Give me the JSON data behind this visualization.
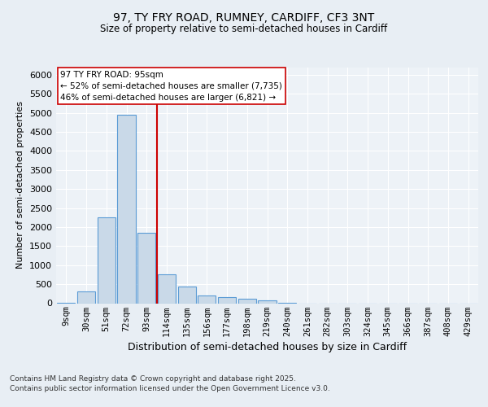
{
  "title1": "97, TY FRY ROAD, RUMNEY, CARDIFF, CF3 3NT",
  "title2": "Size of property relative to semi-detached houses in Cardiff",
  "xlabel": "Distribution of semi-detached houses by size in Cardiff",
  "ylabel": "Number of semi-detached properties",
  "categories": [
    "9sqm",
    "30sqm",
    "51sqm",
    "72sqm",
    "93sqm",
    "114sqm",
    "135sqm",
    "156sqm",
    "177sqm",
    "198sqm",
    "219sqm",
    "240sqm",
    "261sqm",
    "282sqm",
    "303sqm",
    "324sqm",
    "345sqm",
    "366sqm",
    "387sqm",
    "408sqm",
    "429sqm"
  ],
  "values": [
    15,
    310,
    2250,
    4950,
    1850,
    750,
    430,
    200,
    160,
    110,
    65,
    10,
    0,
    0,
    0,
    0,
    0,
    0,
    0,
    0,
    0
  ],
  "bar_color": "#c9d9e8",
  "bar_edge_color": "#5b9bd5",
  "vline_x": 4.5,
  "vline_color": "#cc0000",
  "annotation_line1": "97 TY FRY ROAD: 95sqm",
  "annotation_line2": "← 52% of semi-detached houses are smaller (7,735)",
  "annotation_line3": "46% of semi-detached houses are larger (6,821) →",
  "annotation_box_color": "#ffffff",
  "annotation_box_edge": "#cc0000",
  "ylim": [
    0,
    6200
  ],
  "yticks": [
    0,
    500,
    1000,
    1500,
    2000,
    2500,
    3000,
    3500,
    4000,
    4500,
    5000,
    5500,
    6000
  ],
  "footer1": "Contains HM Land Registry data © Crown copyright and database right 2025.",
  "footer2": "Contains public sector information licensed under the Open Government Licence v3.0.",
  "bg_color": "#e8eef4",
  "plot_bg_color": "#edf2f7"
}
